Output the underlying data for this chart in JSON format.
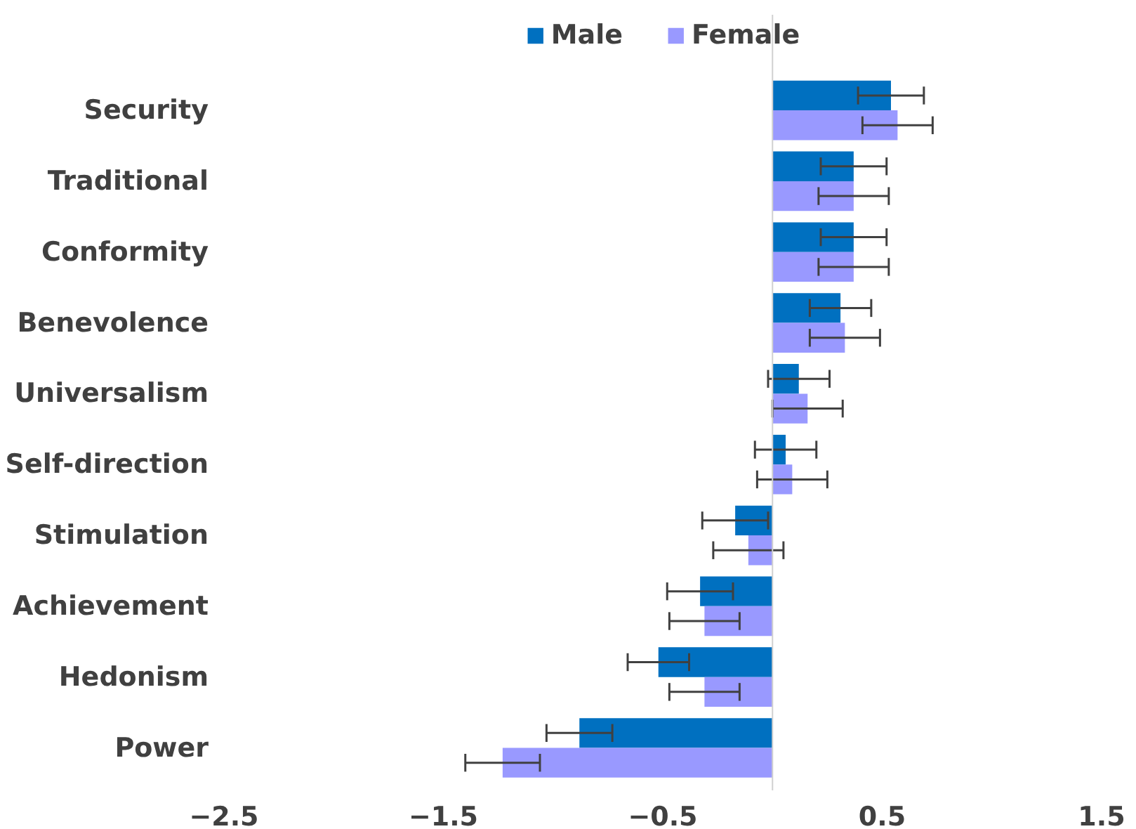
{
  "chart_data": {
    "type": "bar",
    "orientation": "horizontal",
    "categories": [
      "Security",
      "Traditional",
      "Conformity",
      "Benevolence",
      "Universalism",
      "Self-direction",
      "Stimulation",
      "Achievement",
      "Hedonism",
      "Power"
    ],
    "series": [
      {
        "name": "Male",
        "color": "#0070c0",
        "values": [
          0.54,
          0.37,
          0.37,
          0.31,
          0.12,
          0.06,
          -0.17,
          -0.33,
          -0.52,
          -0.88
        ],
        "errors": [
          0.15,
          0.15,
          0.15,
          0.14,
          0.14,
          0.14,
          0.15,
          0.15,
          0.14,
          0.15
        ]
      },
      {
        "name": "Female",
        "color": "#9999ff",
        "values": [
          0.57,
          0.37,
          0.37,
          0.33,
          0.16,
          0.09,
          -0.11,
          -0.31,
          -0.31,
          -1.23
        ],
        "errors": [
          0.16,
          0.16,
          0.16,
          0.16,
          0.16,
          0.16,
          0.16,
          0.16,
          0.16,
          0.17
        ]
      }
    ],
    "xlim": [
      -2.5,
      1.5
    ],
    "xticks": [
      -2.5,
      -1.5,
      -0.5,
      0.5,
      1.5
    ],
    "grid": false,
    "legend": "top"
  }
}
